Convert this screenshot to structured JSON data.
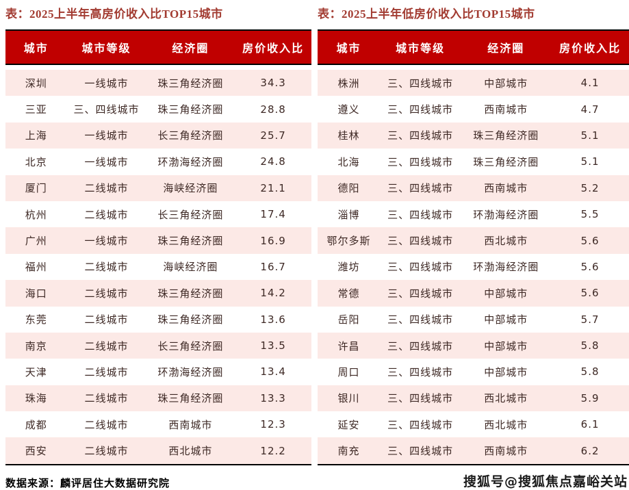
{
  "colors": {
    "header_bg": "#c00000",
    "row_alt_bg": "#fce9e6",
    "title_color": "#a23b31",
    "cell_text": "#3d2824",
    "border_color": "#000000"
  },
  "footer": {
    "source_note": "数据来源：麟评居住大数据研究院",
    "watermark": "搜狐号@搜狐焦点嘉峪关站"
  },
  "chart_data": [
    {
      "type": "table",
      "title": "表：2025上半年高房价收入比TOP15城市",
      "columns": [
        "城市",
        "城市等级",
        "经济圈",
        "房价收入比"
      ],
      "rows": [
        {
          "city": "深圳",
          "tier": "一线城市",
          "circle": "珠三角经济圈",
          "ratio": 34.3
        },
        {
          "city": "三亚",
          "tier": "三、四线城市",
          "circle": "珠三角经济圈",
          "ratio": 28.8
        },
        {
          "city": "上海",
          "tier": "一线城市",
          "circle": "长三角经济圈",
          "ratio": 25.7
        },
        {
          "city": "北京",
          "tier": "一线城市",
          "circle": "环渤海经济圈",
          "ratio": 24.8
        },
        {
          "city": "厦门",
          "tier": "二线城市",
          "circle": "海峡经济圈",
          "ratio": 21.1
        },
        {
          "city": "杭州",
          "tier": "二线城市",
          "circle": "长三角经济圈",
          "ratio": 17.4
        },
        {
          "city": "广州",
          "tier": "一线城市",
          "circle": "珠三角经济圈",
          "ratio": 16.9
        },
        {
          "city": "福州",
          "tier": "二线城市",
          "circle": "海峡经济圈",
          "ratio": 16.7
        },
        {
          "city": "海口",
          "tier": "二线城市",
          "circle": "珠三角经济圈",
          "ratio": 14.2
        },
        {
          "city": "东莞",
          "tier": "二线城市",
          "circle": "珠三角经济圈",
          "ratio": 13.6
        },
        {
          "city": "南京",
          "tier": "二线城市",
          "circle": "长三角经济圈",
          "ratio": 13.5
        },
        {
          "city": "天津",
          "tier": "二线城市",
          "circle": "环渤海经济圈",
          "ratio": 13.4
        },
        {
          "city": "珠海",
          "tier": "二线城市",
          "circle": "珠三角经济圈",
          "ratio": 13.3
        },
        {
          "city": "成都",
          "tier": "二线城市",
          "circle": "西南城市",
          "ratio": 12.3
        },
        {
          "city": "西安",
          "tier": "二线城市",
          "circle": "西北城市",
          "ratio": 12.2
        }
      ]
    },
    {
      "type": "table",
      "title": "表：2025上半年低房价收入比TOP15城市",
      "columns": [
        "城市",
        "城市等级",
        "经济圈",
        "房价收入比"
      ],
      "rows": [
        {
          "city": "株洲",
          "tier": "三、四线城市",
          "circle": "中部城市",
          "ratio": 4.1
        },
        {
          "city": "遵义",
          "tier": "三、四线城市",
          "circle": "西南城市",
          "ratio": 4.7
        },
        {
          "city": "桂林",
          "tier": "三、四线城市",
          "circle": "珠三角经济圈",
          "ratio": 5.1
        },
        {
          "city": "北海",
          "tier": "三、四线城市",
          "circle": "珠三角经济圈",
          "ratio": 5.1
        },
        {
          "city": "德阳",
          "tier": "三、四线城市",
          "circle": "西南城市",
          "ratio": 5.2
        },
        {
          "city": "淄博",
          "tier": "三、四线城市",
          "circle": "环渤海经济圈",
          "ratio": 5.5
        },
        {
          "city": "鄂尔多斯",
          "tier": "三、四线城市",
          "circle": "西北城市",
          "ratio": 5.6
        },
        {
          "city": "潍坊",
          "tier": "三、四线城市",
          "circle": "环渤海经济圈",
          "ratio": 5.6
        },
        {
          "city": "常德",
          "tier": "三、四线城市",
          "circle": "中部城市",
          "ratio": 5.6
        },
        {
          "city": "岳阳",
          "tier": "三、四线城市",
          "circle": "中部城市",
          "ratio": 5.7
        },
        {
          "city": "许昌",
          "tier": "三、四线城市",
          "circle": "中部城市",
          "ratio": 5.8
        },
        {
          "city": "周口",
          "tier": "三、四线城市",
          "circle": "中部城市",
          "ratio": 5.8
        },
        {
          "city": "银川",
          "tier": "三、四线城市",
          "circle": "西北城市",
          "ratio": 5.9
        },
        {
          "city": "延安",
          "tier": "三、四线城市",
          "circle": "西北城市",
          "ratio": 6.1
        },
        {
          "city": "南充",
          "tier": "三、四线城市",
          "circle": "西南城市",
          "ratio": 6.2
        }
      ]
    }
  ]
}
